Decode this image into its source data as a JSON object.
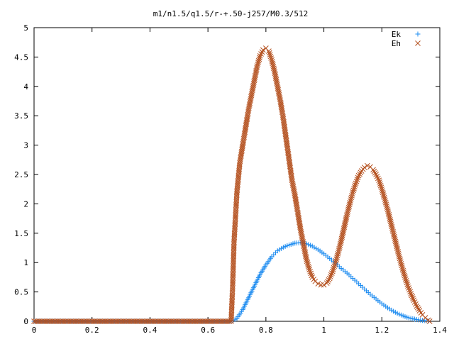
{
  "chart_data": {
    "type": "scatter",
    "title": "m1/n1.5/q1.5/r-+.50-j257/M0.3/512",
    "xlabel": "",
    "ylabel": "",
    "xlim": [
      0,
      1.4
    ],
    "ylim": [
      0,
      5
    ],
    "x_ticks": [
      "0",
      "0.2",
      "0.4",
      "0.6",
      "0.8",
      "1",
      "1.2",
      "1.4"
    ],
    "y_ticks": [
      "0",
      "0.5",
      "1",
      "1.5",
      "2",
      "2.5",
      "3",
      "3.5",
      "4",
      "4.5",
      "5"
    ],
    "grid": false,
    "legend_position": "top-right",
    "series": [
      {
        "name": "Ek",
        "marker": "plus",
        "color": "#1e8cf0",
        "points": [
          [
            0.0,
            0
          ],
          [
            0.1,
            0
          ],
          [
            0.2,
            0
          ],
          [
            0.3,
            0
          ],
          [
            0.4,
            0
          ],
          [
            0.5,
            0
          ],
          [
            0.6,
            0
          ],
          [
            0.68,
            0
          ],
          [
            0.7,
            0.05
          ],
          [
            0.72,
            0.2
          ],
          [
            0.74,
            0.4
          ],
          [
            0.76,
            0.6
          ],
          [
            0.78,
            0.8
          ],
          [
            0.8,
            0.96
          ],
          [
            0.82,
            1.1
          ],
          [
            0.84,
            1.2
          ],
          [
            0.86,
            1.26
          ],
          [
            0.88,
            1.3
          ],
          [
            0.9,
            1.33
          ],
          [
            0.92,
            1.34
          ],
          [
            0.94,
            1.32
          ],
          [
            0.96,
            1.28
          ],
          [
            0.98,
            1.22
          ],
          [
            1.0,
            1.15
          ],
          [
            1.02,
            1.07
          ],
          [
            1.04,
            0.99
          ],
          [
            1.06,
            0.9
          ],
          [
            1.08,
            0.82
          ],
          [
            1.1,
            0.73
          ],
          [
            1.12,
            0.64
          ],
          [
            1.14,
            0.55
          ],
          [
            1.16,
            0.46
          ],
          [
            1.18,
            0.38
          ],
          [
            1.2,
            0.3
          ],
          [
            1.22,
            0.23
          ],
          [
            1.24,
            0.17
          ],
          [
            1.26,
            0.12
          ],
          [
            1.28,
            0.08
          ],
          [
            1.3,
            0.05
          ],
          [
            1.32,
            0.03
          ],
          [
            1.34,
            0.015
          ],
          [
            1.36,
            0.005
          ]
        ]
      },
      {
        "name": "Eh",
        "marker": "cross",
        "color": "#b4501e",
        "points": [
          [
            0.0,
            0
          ],
          [
            0.1,
            0
          ],
          [
            0.2,
            0
          ],
          [
            0.3,
            0
          ],
          [
            0.4,
            0
          ],
          [
            0.5,
            0
          ],
          [
            0.6,
            0
          ],
          [
            0.68,
            0
          ],
          [
            0.685,
            0.57
          ],
          [
            0.69,
            1.35
          ],
          [
            0.7,
            2.2
          ],
          [
            0.71,
            2.7
          ],
          [
            0.72,
            3.0
          ],
          [
            0.73,
            3.3
          ],
          [
            0.74,
            3.6
          ],
          [
            0.75,
            3.85
          ],
          [
            0.76,
            4.1
          ],
          [
            0.77,
            4.35
          ],
          [
            0.78,
            4.52
          ],
          [
            0.79,
            4.62
          ],
          [
            0.8,
            4.65
          ],
          [
            0.81,
            4.6
          ],
          [
            0.82,
            4.45
          ],
          [
            0.83,
            4.25
          ],
          [
            0.84,
            4.0
          ],
          [
            0.85,
            3.75
          ],
          [
            0.86,
            3.45
          ],
          [
            0.87,
            3.1
          ],
          [
            0.88,
            2.75
          ],
          [
            0.89,
            2.4
          ],
          [
            0.9,
            2.15
          ],
          [
            0.91,
            1.85
          ],
          [
            0.92,
            1.55
          ],
          [
            0.93,
            1.3
          ],
          [
            0.94,
            1.05
          ],
          [
            0.95,
            0.88
          ],
          [
            0.96,
            0.75
          ],
          [
            0.97,
            0.68
          ],
          [
            0.98,
            0.64
          ],
          [
            0.99,
            0.62
          ],
          [
            1.0,
            0.62
          ],
          [
            1.01,
            0.65
          ],
          [
            1.02,
            0.73
          ],
          [
            1.03,
            0.85
          ],
          [
            1.04,
            1.0
          ],
          [
            1.05,
            1.18
          ],
          [
            1.06,
            1.38
          ],
          [
            1.07,
            1.6
          ],
          [
            1.08,
            1.82
          ],
          [
            1.09,
            2.02
          ],
          [
            1.1,
            2.2
          ],
          [
            1.11,
            2.35
          ],
          [
            1.12,
            2.48
          ],
          [
            1.13,
            2.56
          ],
          [
            1.14,
            2.62
          ],
          [
            1.15,
            2.65
          ],
          [
            1.16,
            2.63
          ],
          [
            1.17,
            2.58
          ],
          [
            1.18,
            2.5
          ],
          [
            1.19,
            2.4
          ],
          [
            1.2,
            2.25
          ],
          [
            1.21,
            2.08
          ],
          [
            1.22,
            1.9
          ],
          [
            1.23,
            1.7
          ],
          [
            1.24,
            1.5
          ],
          [
            1.25,
            1.3
          ],
          [
            1.26,
            1.1
          ],
          [
            1.27,
            0.92
          ],
          [
            1.28,
            0.75
          ],
          [
            1.29,
            0.6
          ],
          [
            1.3,
            0.47
          ],
          [
            1.31,
            0.36
          ],
          [
            1.32,
            0.26
          ],
          [
            1.33,
            0.18
          ],
          [
            1.34,
            0.11
          ],
          [
            1.35,
            0.06
          ],
          [
            1.36,
            0.02
          ],
          [
            1.365,
            0.0
          ]
        ]
      }
    ]
  }
}
